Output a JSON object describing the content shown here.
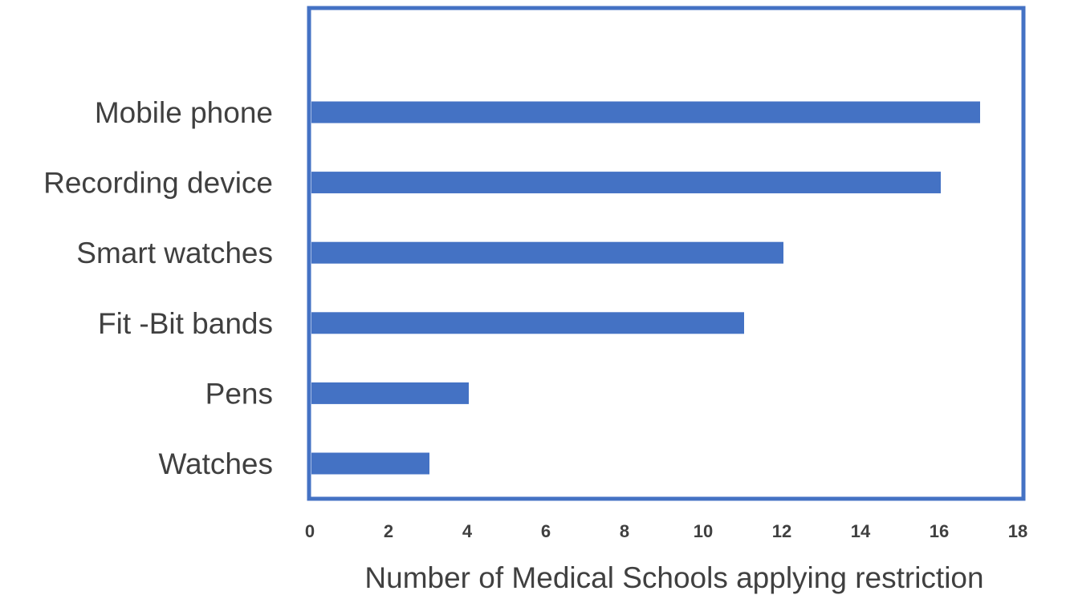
{
  "chart_data": {
    "type": "bar",
    "orientation": "horizontal",
    "categories": [
      "Mobile phone",
      "Recording device",
      "Smart watches",
      "Fit -Bit bands",
      "Pens",
      "Watches"
    ],
    "values": [
      17,
      16,
      12,
      11,
      4,
      3
    ],
    "title": "",
    "xlabel": "Number of Medical Schools applying restriction",
    "ylabel": "",
    "xlim": [
      0,
      18
    ],
    "xticks": [
      "0",
      "2",
      "4",
      "6",
      "8",
      "10",
      "12",
      "14",
      "16",
      "18"
    ],
    "grid": false,
    "legend": "none",
    "bar_color": "#4472c4",
    "frame_color": "#4472c4"
  }
}
